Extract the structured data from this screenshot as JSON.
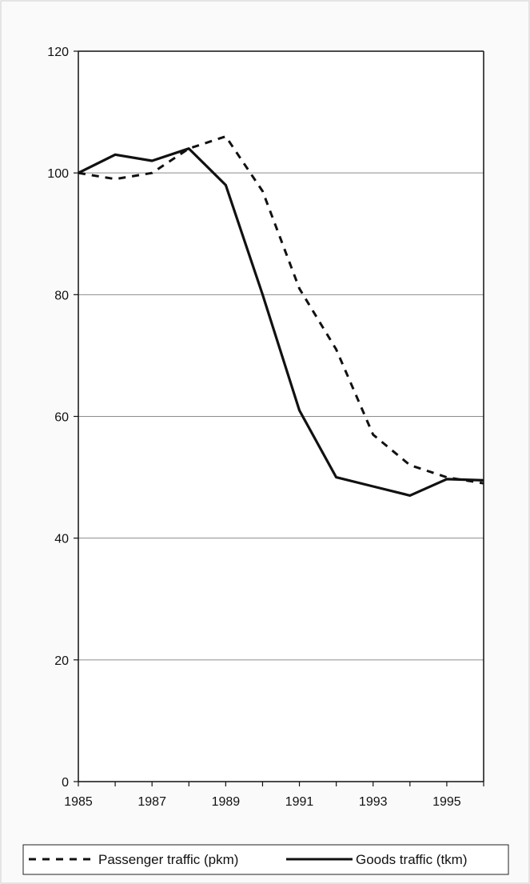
{
  "chart_data": {
    "type": "line",
    "title": "",
    "xlabel": "",
    "ylabel": "",
    "x": [
      1985,
      1986,
      1987,
      1988,
      1989,
      1990,
      1991,
      1992,
      1993,
      1994,
      1995,
      1996
    ],
    "xticks": [
      "1985",
      "1987",
      "1989",
      "1991",
      "1993",
      "1995"
    ],
    "yticks": [
      "0",
      "20",
      "40",
      "60",
      "80",
      "100",
      "120"
    ],
    "xlim": [
      1985,
      1996
    ],
    "ylim": [
      0,
      120
    ],
    "grid": "horizontal",
    "legend_position": "bottom",
    "series": [
      {
        "name": "Passenger traffic (pkm)",
        "style": "dashed",
        "color": "#111111",
        "values": [
          100,
          99,
          100,
          104,
          106,
          97,
          81,
          71,
          57,
          52,
          50,
          49
        ]
      },
      {
        "name": "Goods traffic (tkm)",
        "style": "solid",
        "color": "#111111",
        "values": [
          100,
          103,
          102,
          104,
          98,
          80,
          61,
          50,
          48.5,
          47,
          49.7,
          49.5
        ]
      }
    ]
  }
}
